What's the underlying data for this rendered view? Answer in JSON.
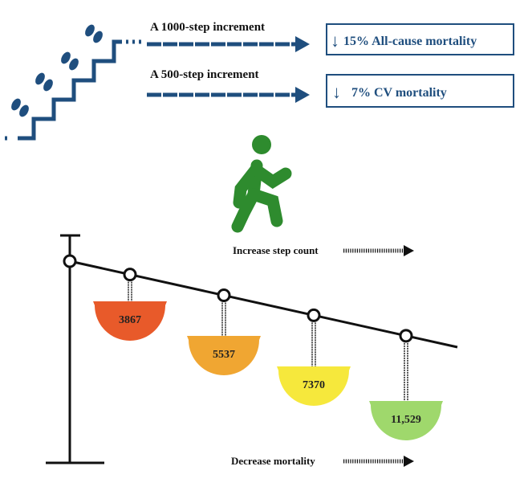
{
  "top": {
    "increment_1000": "A 1000-step increment",
    "increment_500": "A 500-step increment",
    "result_all_cause": "15% All-cause mortality",
    "result_cv": "7% CV mortality",
    "down_arrow": "↓"
  },
  "lever": {
    "increase_label": "Increase step count",
    "decrease_label": "Decrease mortality",
    "weights": [
      {
        "label": "3867",
        "color": "#e85a2a"
      },
      {
        "label": "5537",
        "color": "#f0a632"
      },
      {
        "label": "7370",
        "color": "#f6e83c"
      },
      {
        "label": "11,529",
        "color": "#9fd86c"
      }
    ]
  },
  "colors": {
    "navy": "#1f4e7e",
    "walker": "#2e8b2e"
  }
}
